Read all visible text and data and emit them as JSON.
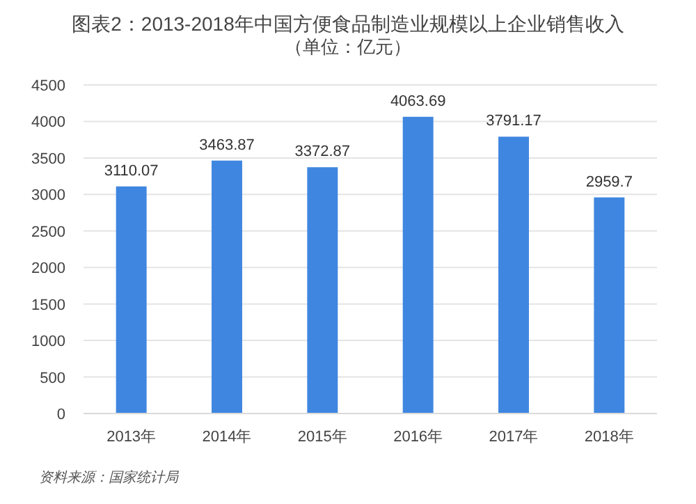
{
  "chart_data": {
    "type": "bar",
    "title": "图表2：2013-2018年中国方便食品制造业规模以上企业销售收入",
    "subtitle": "（单位：亿元）",
    "categories": [
      "2013年",
      "2014年",
      "2015年",
      "2016年",
      "2017年",
      "2018年"
    ],
    "values": [
      3110.07,
      3463.87,
      3372.87,
      4063.69,
      3791.17,
      2959.7
    ],
    "color": "#3f86e0",
    "ylim": [
      0,
      4500
    ],
    "yticks": [
      0,
      500,
      1000,
      1500,
      2000,
      2500,
      3000,
      3500,
      4000,
      4500
    ],
    "grid": "y",
    "data_labels": true,
    "annotations": [
      "资料来源：国家统计局"
    ]
  }
}
